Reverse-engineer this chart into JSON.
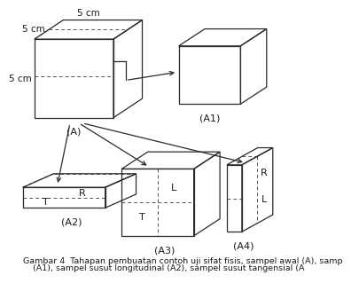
{
  "background_color": "#ffffff",
  "line_color": "#2a2a2a",
  "dashed_color": "#555555",
  "text_color": "#1a1a1a",
  "label_A": "(A)",
  "label_A1": "(A1)",
  "label_A2": "(A2)",
  "label_A3": "(A3)",
  "label_A4": "(A4)",
  "dim_top": "5 cm",
  "dim_left_top": "5 cm",
  "dim_left_mid": "5 cm",
  "caption_line1": "Gambar 4  Tahapan pembuatan contoh uji sifat fisis, sampel awal (A), samp",
  "caption_line2": "(A1), sampel susut longitudinal (A2), sampel susut tangensial (A",
  "fontsize_label": 8,
  "fontsize_dim": 7.5,
  "fontsize_caption": 6.8,
  "fontsize_letter": 8
}
